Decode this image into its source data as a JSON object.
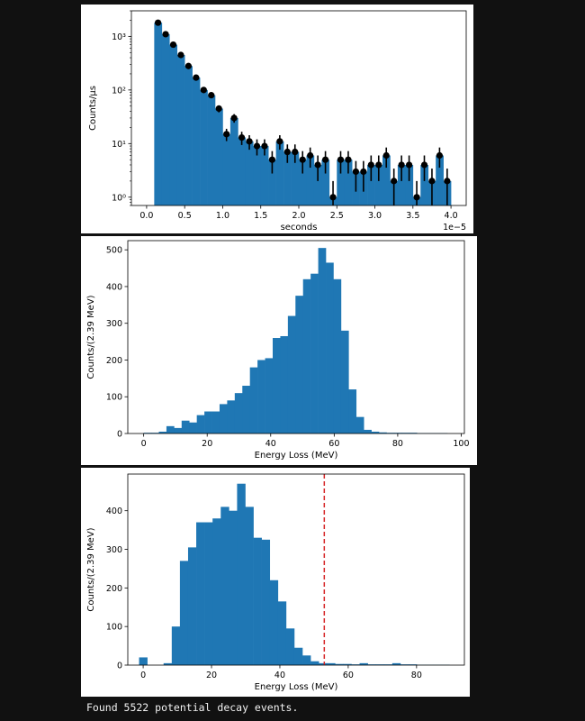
{
  "colors": {
    "bar": "#1f77b4",
    "marker": "#000000",
    "cutoff": "#d62728",
    "background": "#111111"
  },
  "console_output": "Found 5522 potential decay events.",
  "chart_data": [
    {
      "type": "bar",
      "title": "",
      "xlabel": "seconds",
      "ylabel": "Counts/μs",
      "x_offset_label": "1e−5",
      "yscale": "log",
      "ylim": [
        0.7,
        3000
      ],
      "xlim": [
        -0.2,
        4.2
      ],
      "xticks": [
        0.0,
        0.5,
        1.0,
        1.5,
        2.0,
        2.5,
        3.0,
        3.5,
        4.0
      ],
      "xtick_labels": [
        "0.0",
        "0.5",
        "1.0",
        "1.5",
        "2.0",
        "2.5",
        "3.0",
        "3.5",
        "4.0"
      ],
      "yticks": [
        1,
        10,
        100,
        1000
      ],
      "ytick_labels": [
        "10⁰",
        "10¹",
        "10²",
        "10³"
      ],
      "bin_start": 0.1,
      "bin_width": 0.1,
      "values": [
        1800,
        1100,
        700,
        450,
        280,
        170,
        100,
        80,
        45,
        15,
        30,
        13,
        11,
        9,
        9,
        5,
        11,
        7,
        7,
        5,
        6,
        4,
        5,
        1,
        5,
        5,
        3,
        3,
        4,
        4,
        6,
        2,
        4,
        4,
        1,
        4,
        2,
        6,
        2
      ],
      "legend": "none",
      "grid": false
    },
    {
      "type": "bar",
      "title": "",
      "xlabel": "Energy Loss (MeV)",
      "ylabel": "Counts/(2.39 MeV)",
      "xlim": [
        -5,
        101
      ],
      "ylim": [
        0,
        525
      ],
      "xticks": [
        0,
        20,
        40,
        60,
        80,
        100
      ],
      "yticks": [
        0,
        100,
        200,
        300,
        400,
        500
      ],
      "bin_start": 0,
      "bin_width": 2.39,
      "values": [
        2,
        2,
        5,
        20,
        15,
        35,
        30,
        50,
        60,
        60,
        80,
        90,
        110,
        130,
        180,
        200,
        205,
        260,
        265,
        320,
        375,
        420,
        435,
        505,
        465,
        420,
        280,
        120,
        45,
        10,
        5,
        3,
        2,
        2,
        2,
        2,
        1,
        1,
        1,
        1
      ],
      "legend": "none",
      "grid": false
    },
    {
      "type": "bar",
      "title": "",
      "xlabel": "Energy Loss (MeV)",
      "ylabel": "Counts/(2.39 MeV)",
      "xlim": [
        -4.5,
        94
      ],
      "ylim": [
        0,
        495
      ],
      "xticks": [
        0,
        20,
        40,
        60,
        80
      ],
      "yticks": [
        0,
        100,
        200,
        300,
        400
      ],
      "bin_start": -1.2,
      "bin_width": 2.39,
      "values": [
        20,
        0,
        0,
        5,
        100,
        270,
        305,
        370,
        370,
        380,
        410,
        400,
        470,
        410,
        330,
        325,
        220,
        165,
        95,
        45,
        25,
        10,
        5,
        5,
        3,
        3,
        2,
        5,
        2,
        2,
        2,
        5,
        2,
        2,
        1,
        1,
        1,
        1
      ],
      "cutoff_line_x": 53,
      "legend": "none",
      "grid": false
    }
  ]
}
